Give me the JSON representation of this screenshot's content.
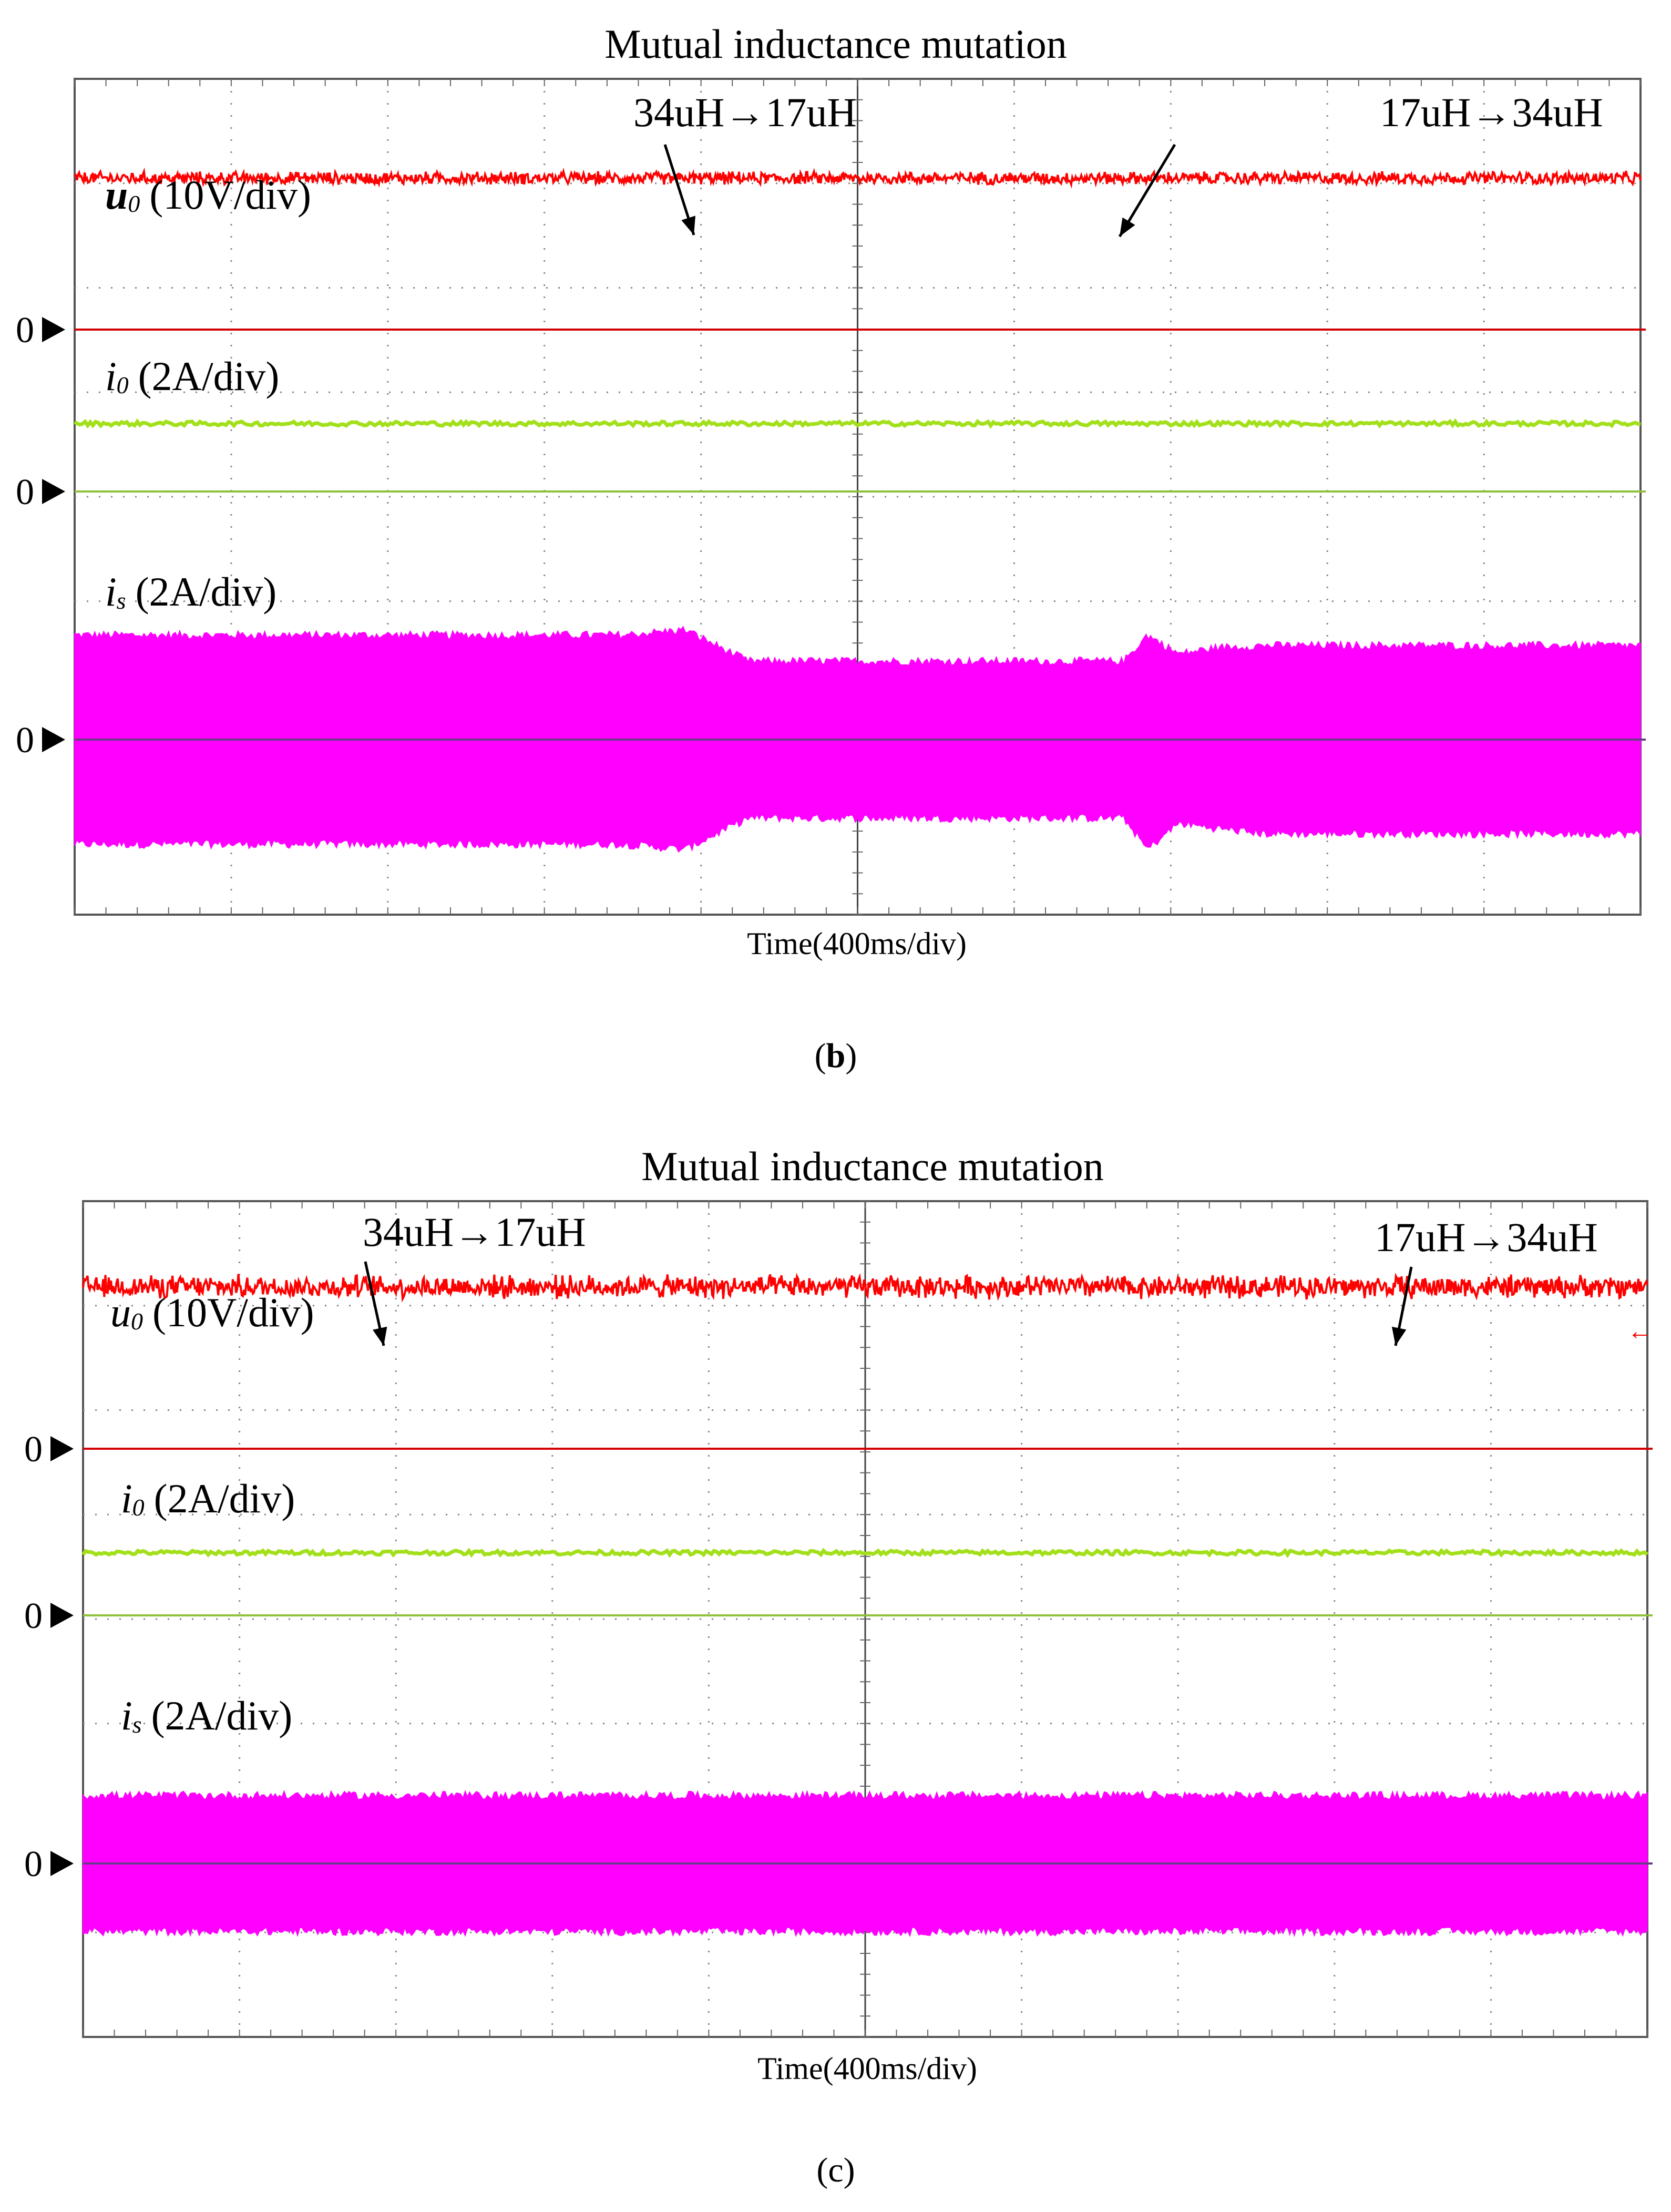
{
  "figure": {
    "panels": [
      {
        "id": "b",
        "caption_open": "(",
        "caption_letter": "b",
        "caption_close": ")",
        "title": "Mutual inductance mutation",
        "xlabel": "Time(400ms/div)",
        "events": [
          {
            "label": "34uH→17uH",
            "time_div": 4.05
          },
          {
            "label": "17uH→34uH",
            "time_div": 6.75
          }
        ],
        "channels": [
          {
            "key": "u0",
            "var": "u",
            "sub": "0",
            "scale": "(10V/div)",
            "color": "#ff0000",
            "zero_marker": "0",
            "baseline_color": "#d40000"
          },
          {
            "key": "i0",
            "var": "i",
            "sub": "0",
            "scale": "(2A/div)",
            "color": "#a3e01c",
            "zero_marker": "0",
            "baseline_color": "#8fc13a"
          },
          {
            "key": "is",
            "var": "i",
            "sub": "s",
            "scale": "(2A/div)",
            "color": "#ff00ff",
            "zero_marker": "0",
            "baseline_color": "#6a3a8a"
          }
        ]
      },
      {
        "id": "c",
        "caption_open": "(",
        "caption_letter": "c",
        "caption_close": ")",
        "title": "Mutual inductance mutation",
        "xlabel": "Time(400ms/div)",
        "events": [
          {
            "label": "34uH→17uH",
            "time_div": 1.9
          },
          {
            "label": "17uH→34uH",
            "time_div": 8.6
          }
        ],
        "channels": [
          {
            "key": "u0",
            "var": "u",
            "sub": "0",
            "scale": "(10V/div)",
            "color": "#ff0000",
            "zero_marker": "0",
            "baseline_color": "#d40000"
          },
          {
            "key": "i0",
            "var": "i",
            "sub": "0",
            "scale": "(2A/div)",
            "color": "#a3e01c",
            "zero_marker": "0",
            "baseline_color": "#8fc13a"
          },
          {
            "key": "is",
            "var": "i",
            "sub": "s",
            "scale": "(2A/div)",
            "color": "#ff00ff",
            "zero_marker": "0",
            "baseline_color": "#6a3a8a"
          }
        ]
      }
    ]
  },
  "chart_data": [
    {
      "type": "line",
      "title": "Mutual inductance mutation",
      "xlabel": "Time(400ms/div)",
      "x_divisions": 10,
      "y_divisions": 8,
      "grid": true,
      "series": [
        {
          "name": "u0 (10V/div)",
          "x": [
            0,
            4.05,
            6.75,
            10
          ],
          "values": [
            1.45,
            1.45,
            1.45,
            1.45
          ],
          "ripple_div": 0.05
        },
        {
          "name": "i0 (2A/div)",
          "x": [
            0,
            10
          ],
          "values": [
            0.65,
            0.65
          ],
          "ripple_div": 0.02
        },
        {
          "name": "is (2A/div) envelope",
          "x": [
            0,
            3.5,
            3.9,
            4.3,
            6.5,
            6.7,
            6.85,
            7.05,
            7.3,
            7.6,
            10
          ],
          "upper": [
            1.0,
            1.0,
            1.05,
            0.75,
            0.75,
            0.75,
            1.0,
            0.82,
            0.88,
            0.9,
            0.9
          ],
          "lower": [
            -1.0,
            -1.0,
            -1.05,
            -0.75,
            -0.75,
            -0.75,
            -1.05,
            -0.8,
            -0.85,
            -0.9,
            -0.9
          ]
        }
      ]
    },
    {
      "type": "line",
      "title": "Mutual inductance mutation",
      "xlabel": "Time(400ms/div)",
      "x_divisions": 10,
      "y_divisions": 8,
      "grid": true,
      "series": [
        {
          "name": "u0 (10V/div)",
          "x": [
            0,
            1.9,
            8.6,
            10
          ],
          "values": [
            1.55,
            1.55,
            1.55,
            1.55
          ],
          "ripple_div": 0.09
        },
        {
          "name": "i0 (2A/div)",
          "x": [
            0,
            10
          ],
          "values": [
            0.6,
            0.6
          ],
          "ripple_div": 0.02
        },
        {
          "name": "is (2A/div) envelope",
          "x": [
            0,
            10
          ],
          "upper": [
            0.65,
            0.65
          ],
          "lower": [
            -0.65,
            -0.65
          ]
        }
      ]
    }
  ]
}
